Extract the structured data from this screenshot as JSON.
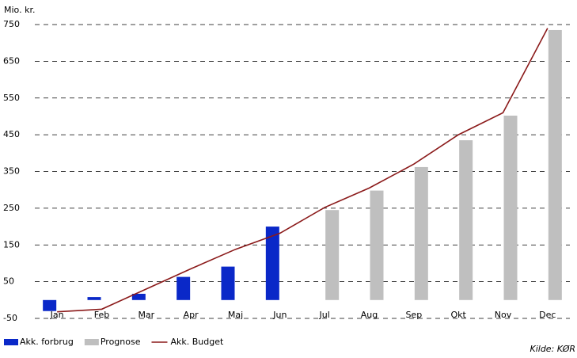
{
  "chart_data": {
    "type": "bar",
    "y_label": "Mio. kr.",
    "source": "Kilde: KØR",
    "categories": [
      "Jan",
      "Feb",
      "Mar",
      "Apr",
      "Maj",
      "Jun",
      "Jul",
      "Aug",
      "Sep",
      "Okt",
      "Nov",
      "Dec"
    ],
    "series": [
      {
        "name": "Akk. forbrug",
        "type": "bar",
        "color": "#0a28c8",
        "values": [
          -30,
          8,
          17,
          63,
          91,
          200,
          null,
          null,
          null,
          null,
          null,
          null
        ]
      },
      {
        "name": "Prognose",
        "type": "bar",
        "color": "#bfbfbf",
        "values": [
          null,
          null,
          null,
          null,
          null,
          null,
          245,
          298,
          362,
          435,
          502,
          735
        ]
      },
      {
        "name": "Akk. Budget",
        "type": "line",
        "color": "#8b1a1a",
        "values": [
          -32,
          -25,
          30,
          85,
          138,
          182,
          252,
          305,
          370,
          450,
          510,
          740
        ]
      }
    ],
    "ylim": [
      -50,
      750
    ],
    "yticks": [
      -50,
      50,
      150,
      250,
      350,
      450,
      550,
      650,
      750
    ],
    "grid": true
  }
}
